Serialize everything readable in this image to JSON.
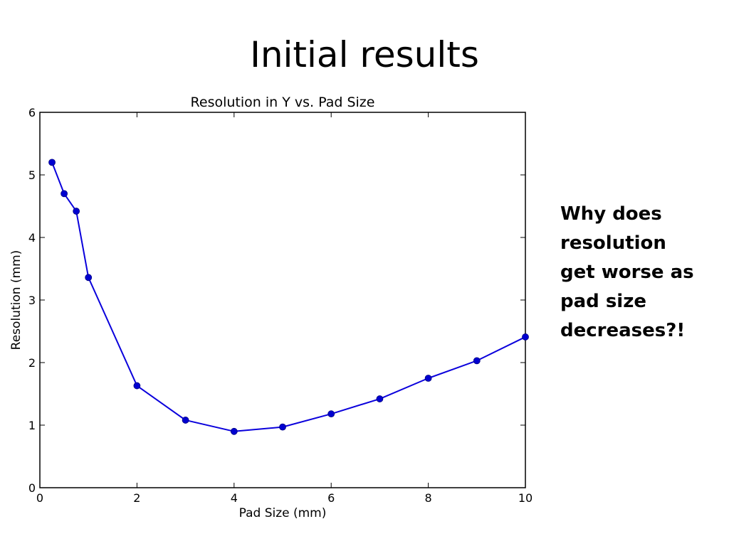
{
  "slide": {
    "title": "Initial results",
    "note_lines": [
      "Why does",
      "resolution",
      "get worse as",
      "pad size",
      "decreases?!"
    ]
  },
  "colors": {
    "series": "#0a00dc",
    "marker": "#0000d0"
  },
  "chart_data": {
    "type": "line",
    "title": "Resolution in Y  vs. Pad Size",
    "xlabel": "Pad Size (mm)",
    "ylabel": "Resolution (mm)",
    "xlim": [
      0,
      10
    ],
    "ylim": [
      0,
      6
    ],
    "xticks": [
      "0",
      "2",
      "4",
      "6",
      "8",
      "10"
    ],
    "yticks": [
      "0",
      "1",
      "2",
      "3",
      "4",
      "5",
      "6"
    ],
    "grid": false,
    "series": [
      {
        "name": "Resolution in Y",
        "x": [
          0.25,
          0.5,
          0.75,
          1,
          2,
          3,
          4,
          5,
          6,
          7,
          8,
          9,
          10
        ],
        "y": [
          5.2,
          4.7,
          4.42,
          3.36,
          1.63,
          1.08,
          0.9,
          0.97,
          1.18,
          1.42,
          1.75,
          2.03,
          2.41
        ]
      }
    ]
  }
}
